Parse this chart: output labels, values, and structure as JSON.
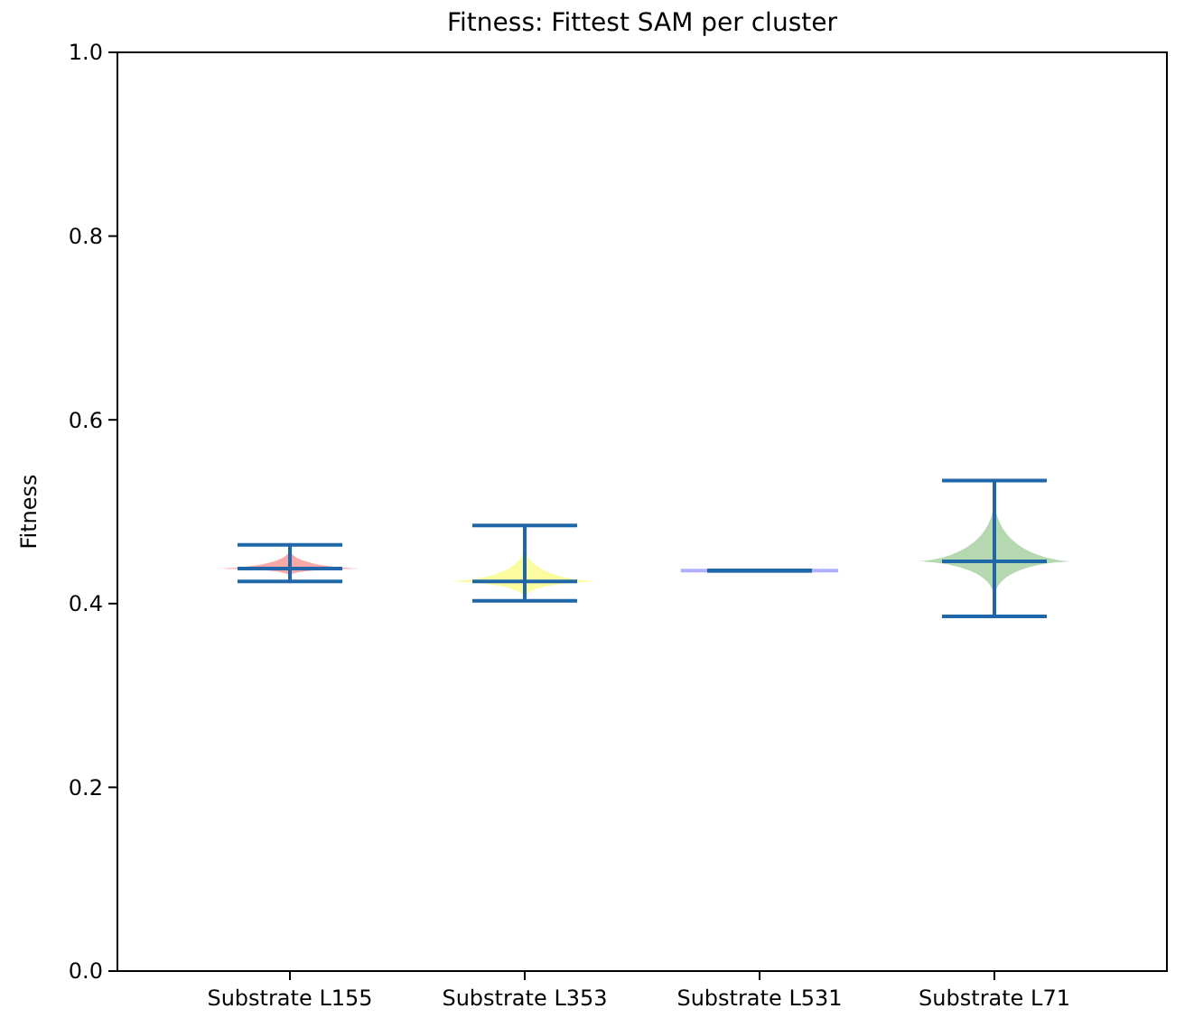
{
  "chart_data": {
    "type": "box",
    "title": "Fitness: Fittest SAM per cluster",
    "ylabel": "Fitness",
    "categories": [
      "Substrate L155",
      "Substrate L353",
      "Substrate L531",
      "Substrate L71"
    ],
    "colors": [
      "#f9a8a8",
      "#fbfb9f",
      "#b0b0ff",
      "#b5d8b0"
    ],
    "boxes": [
      {
        "low": 0.424,
        "q1": 0.43,
        "median": 0.438,
        "q3": 0.46,
        "high": 0.464
      },
      {
        "low": 0.403,
        "q1": 0.405,
        "median": 0.424,
        "q3": 0.464,
        "high": 0.485
      },
      {
        "low": 0.436,
        "q1": 0.436,
        "median": 0.436,
        "q3": 0.436,
        "high": 0.436
      },
      {
        "low": 0.386,
        "q1": 0.405,
        "median": 0.446,
        "q3": 0.517,
        "high": 0.534
      }
    ],
    "ylim": [
      0,
      1
    ],
    "yticks": [
      {
        "value": 0,
        "label": "0.0"
      },
      {
        "value": 0.2,
        "label": "0.2"
      },
      {
        "value": 0.4,
        "label": "0.4"
      },
      {
        "value": 0.6,
        "label": "0.6"
      },
      {
        "value": 0.8,
        "label": "0.8"
      },
      {
        "value": 1,
        "label": "1.0"
      }
    ],
    "grid": false
  }
}
